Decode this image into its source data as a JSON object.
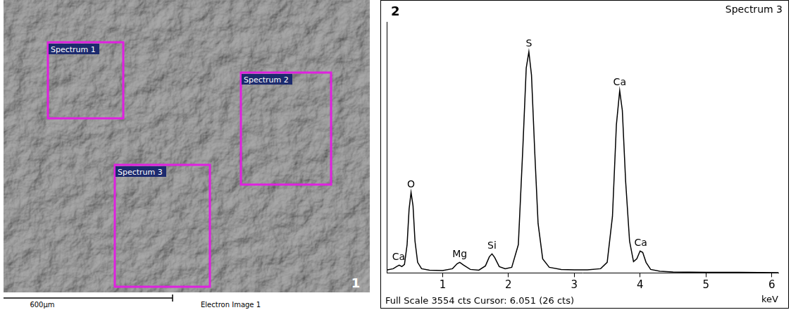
{
  "image_panel": {
    "panel_label": "1",
    "regions": [
      {
        "label": "Spectrum 1"
      },
      {
        "label": "Spectrum 2"
      },
      {
        "label": "Spectrum 3"
      }
    ],
    "scale_bar": "600µm",
    "caption": "Electron Image 1"
  },
  "chart_data": {
    "type": "line",
    "title": "Spectrum 3",
    "panel_label": "2",
    "x_label": "keV",
    "caption": "Full Scale 3554 cts Cursor: 6.051  (26 cts)",
    "x": [
      0.15,
      0.25,
      0.3,
      0.34,
      0.38,
      0.42,
      0.46,
      0.49,
      0.52,
      0.55,
      0.58,
      0.62,
      0.68,
      0.8,
      1.0,
      1.15,
      1.22,
      1.26,
      1.32,
      1.42,
      1.55,
      1.65,
      1.71,
      1.75,
      1.79,
      1.86,
      1.95,
      2.05,
      2.15,
      2.22,
      2.27,
      2.31,
      2.35,
      2.4,
      2.45,
      2.52,
      2.62,
      2.8,
      3.0,
      3.2,
      3.4,
      3.5,
      3.58,
      3.64,
      3.69,
      3.73,
      3.78,
      3.84,
      3.9,
      3.95,
      4.0,
      4.04,
      4.09,
      4.16,
      4.3,
      4.5,
      5.0,
      5.5,
      6.1
    ],
    "values": [
      40,
      60,
      90,
      110,
      90,
      120,
      400,
      900,
      1140,
      950,
      450,
      150,
      60,
      40,
      35,
      60,
      130,
      150,
      110,
      50,
      40,
      100,
      230,
      270,
      220,
      90,
      60,
      80,
      400,
      1800,
      2900,
      3130,
      2800,
      1700,
      700,
      200,
      80,
      50,
      45,
      45,
      60,
      150,
      800,
      2100,
      2580,
      2300,
      1300,
      450,
      160,
      200,
      310,
      290,
      150,
      50,
      25,
      15,
      10,
      8,
      5
    ],
    "color": "#000000",
    "xlim": [
      0.15,
      6.1
    ],
    "xticks": [
      1,
      2,
      3,
      4,
      5,
      6
    ],
    "ylim": [
      0,
      3554
    ],
    "tick_labels": "x",
    "grid": false,
    "annotations": [
      {
        "text": "Ca",
        "x": 0.33,
        "y": 110
      },
      {
        "text": "O",
        "x": 0.52,
        "y": 1140
      },
      {
        "text": "Mg",
        "x": 1.26,
        "y": 150
      },
      {
        "text": "Si",
        "x": 1.75,
        "y": 270
      },
      {
        "text": "S",
        "x": 2.31,
        "y": 3130
      },
      {
        "text": "Ca",
        "x": 3.69,
        "y": 2580
      },
      {
        "text": "Ca",
        "x": 4.01,
        "y": 310
      }
    ]
  }
}
